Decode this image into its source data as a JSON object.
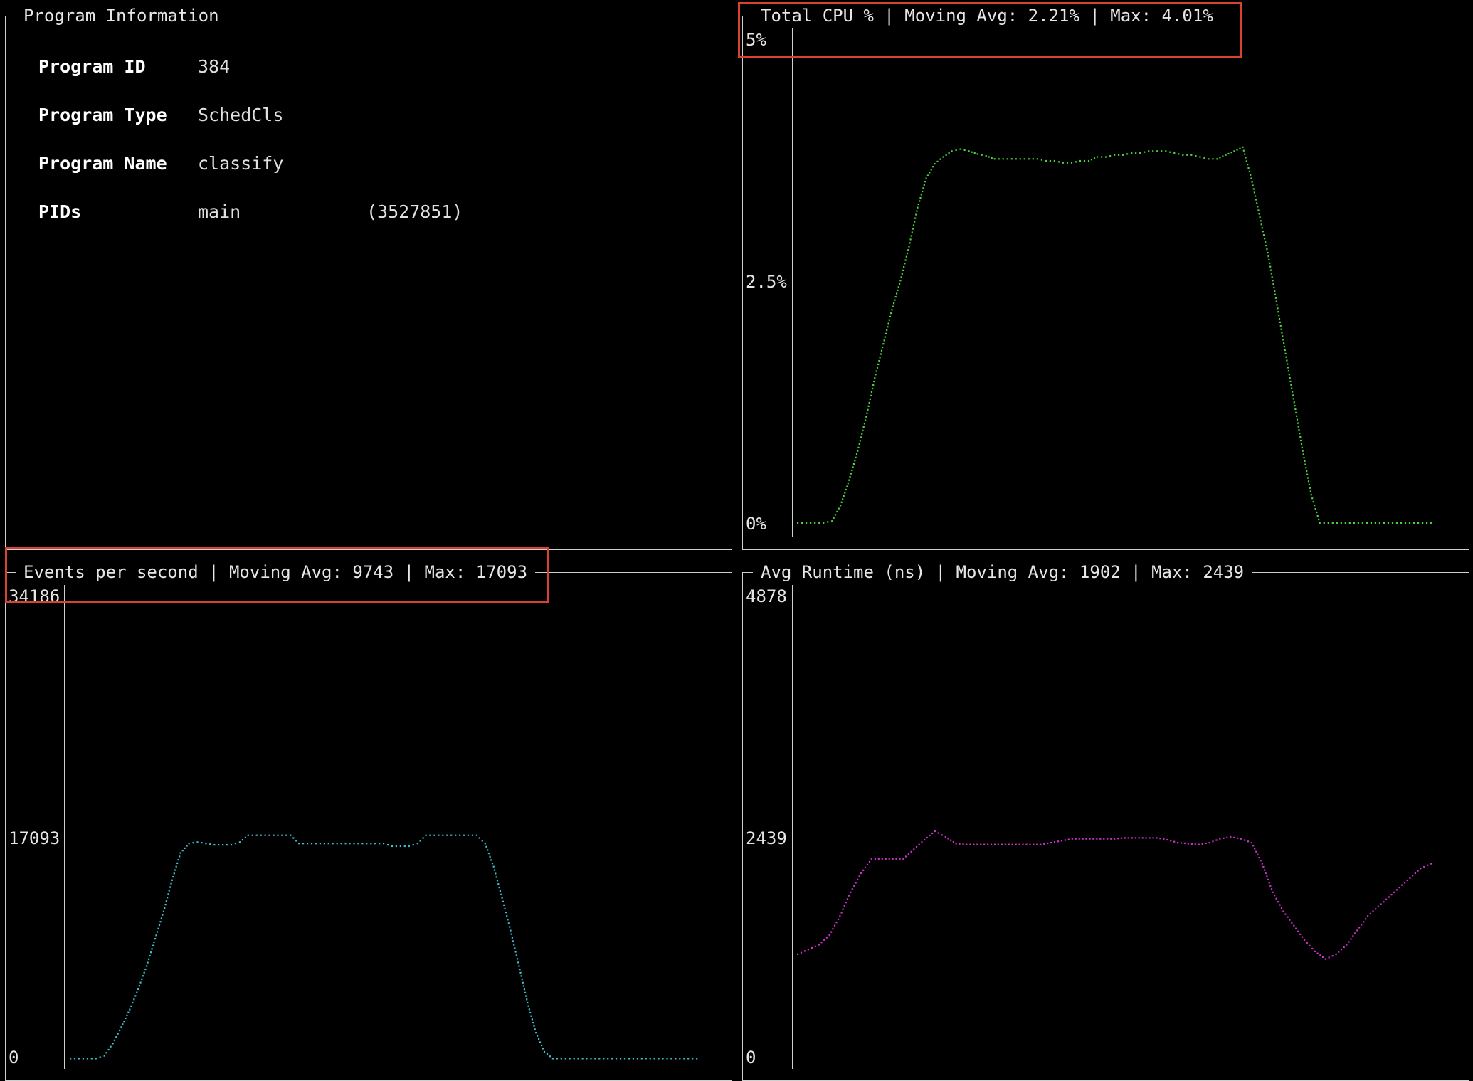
{
  "program_info": {
    "title": "Program Information",
    "rows": [
      {
        "label": "Program ID",
        "value": "384"
      },
      {
        "label": "Program Type",
        "value": "SchedCls"
      },
      {
        "label": "Program Name",
        "value": "classify"
      },
      {
        "label": "PIDs",
        "value": "main",
        "value2": "(3527851)"
      }
    ]
  },
  "charts": [
    {
      "title": "Total CPU % | Moving Avg: 2.21% | Max: 4.01%",
      "ticks": [
        "5%",
        "2.5%",
        "0%"
      ],
      "color": "#4bd23f",
      "chart_data": {
        "type": "line",
        "ylim": [
          0,
          5
        ],
        "values": [
          0.06,
          0.06,
          0.06,
          0.06,
          0.08,
          0.24,
          0.5,
          0.8,
          1.15,
          1.55,
          1.9,
          2.25,
          2.55,
          2.9,
          3.3,
          3.6,
          3.75,
          3.82,
          3.88,
          3.9,
          3.88,
          3.85,
          3.83,
          3.8,
          3.8,
          3.8,
          3.8,
          3.8,
          3.8,
          3.78,
          3.78,
          3.76,
          3.76,
          3.78,
          3.78,
          3.82,
          3.82,
          3.84,
          3.84,
          3.86,
          3.86,
          3.88,
          3.88,
          3.88,
          3.86,
          3.84,
          3.84,
          3.82,
          3.8,
          3.8,
          3.84,
          3.88,
          3.92,
          3.6,
          3.2,
          2.8,
          2.3,
          1.8,
          1.3,
          0.8,
          0.35,
          0.06,
          0.06,
          0.06,
          0.06,
          0.06,
          0.06,
          0.06,
          0.06,
          0.06,
          0.06,
          0.06,
          0.06,
          0.06,
          0.06
        ]
      }
    },
    {
      "title": "Events per second | Moving Avg: 9743 | Max: 17093",
      "ticks": [
        "34186",
        "17093",
        "0"
      ],
      "color": "#3fbfcf",
      "chart_data": {
        "type": "line",
        "ylim": [
          0,
          34186
        ],
        "values": [
          400,
          400,
          400,
          400,
          600,
          1500,
          2700,
          4000,
          5500,
          7200,
          9200,
          11200,
          13500,
          15500,
          16200,
          16300,
          16200,
          16100,
          16100,
          16100,
          16300,
          16800,
          16800,
          16800,
          16800,
          16800,
          16800,
          16200,
          16200,
          16200,
          16200,
          16200,
          16200,
          16200,
          16200,
          16200,
          16200,
          16200,
          16000,
          16000,
          16000,
          16200,
          16800,
          16800,
          16800,
          16800,
          16800,
          16800,
          16800,
          16200,
          14500,
          12200,
          9800,
          7200,
          4500,
          2300,
          900,
          400,
          400,
          400,
          400,
          400,
          400,
          400,
          400,
          400,
          400,
          400,
          400,
          400,
          400,
          400,
          400,
          400,
          400
        ]
      }
    },
    {
      "title": "Avg Runtime (ns) | Moving Avg: 1902 | Max: 2439",
      "ticks": [
        "4878",
        "2439",
        "0"
      ],
      "color": "#cc33cc",
      "chart_data": {
        "type": "line",
        "ylim": [
          0,
          4878
        ],
        "values": [
          1150,
          1200,
          1250,
          1350,
          1550,
          1800,
          2000,
          2150,
          2150,
          2150,
          2150,
          2250,
          2350,
          2440,
          2380,
          2310,
          2300,
          2300,
          2300,
          2300,
          2300,
          2300,
          2300,
          2300,
          2320,
          2340,
          2360,
          2360,
          2360,
          2360,
          2360,
          2370,
          2370,
          2370,
          2370,
          2350,
          2320,
          2310,
          2300,
          2320,
          2360,
          2380,
          2360,
          2320,
          2100,
          1800,
          1600,
          1450,
          1300,
          1180,
          1100,
          1150,
          1250,
          1400,
          1550,
          1650,
          1750,
          1850,
          1950,
          2050,
          2100
        ]
      }
    }
  ]
}
